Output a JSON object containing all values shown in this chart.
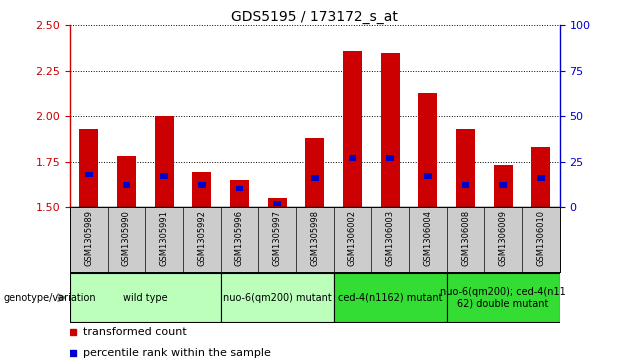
{
  "title": "GDS5195 / 173172_s_at",
  "samples": [
    "GSM1305989",
    "GSM1305990",
    "GSM1305991",
    "GSM1305992",
    "GSM1305996",
    "GSM1305997",
    "GSM1305998",
    "GSM1306002",
    "GSM1306003",
    "GSM1306004",
    "GSM1306008",
    "GSM1306009",
    "GSM1306010"
  ],
  "transformed_count": [
    1.93,
    1.78,
    2.0,
    1.69,
    1.65,
    1.55,
    1.88,
    2.36,
    2.35,
    2.13,
    1.93,
    1.73,
    1.83
  ],
  "percentile_rank": [
    18,
    12,
    17,
    12,
    10,
    2,
    16,
    27,
    27,
    17,
    12,
    12,
    16
  ],
  "ylim_left": [
    1.5,
    2.5
  ],
  "ylim_right": [
    0,
    100
  ],
  "yticks_left": [
    1.5,
    1.75,
    2.0,
    2.25,
    2.5
  ],
  "yticks_right": [
    0,
    25,
    50,
    75,
    100
  ],
  "groups": [
    {
      "label": "wild type",
      "start": 0,
      "end": 3,
      "color": "#bbffbb"
    },
    {
      "label": "nuo-6(qm200) mutant",
      "start": 4,
      "end": 6,
      "color": "#bbffbb"
    },
    {
      "label": "ced-4(n1162) mutant",
      "start": 7,
      "end": 9,
      "color": "#33dd33"
    },
    {
      "label": "nuo-6(qm200); ced-4(n11\n62) double mutant",
      "start": 10,
      "end": 12,
      "color": "#33dd33"
    }
  ],
  "bar_color": "#cc0000",
  "blue_color": "#0000cc",
  "left_axis_color": "#cc0000",
  "right_axis_color": "#0000cc",
  "bar_width": 0.5,
  "blue_bar_width": 0.2
}
